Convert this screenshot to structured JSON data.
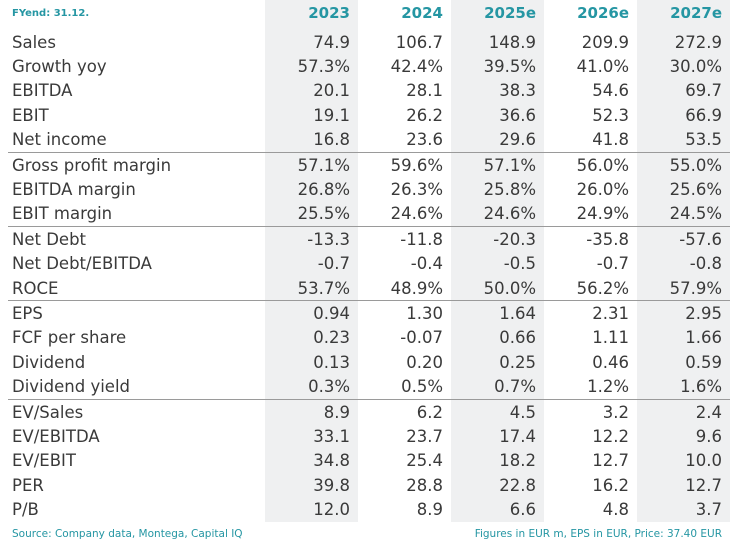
{
  "header": {
    "label": "FYend: 31.12.",
    "columns": [
      "2023",
      "2024",
      "2025e",
      "2026e",
      "2027e"
    ]
  },
  "sections": [
    [
      [
        "Sales",
        "74.9",
        "106.7",
        "148.9",
        "209.9",
        "272.9"
      ],
      [
        "Growth yoy",
        "57.3%",
        "42.4%",
        "39.5%",
        "41.0%",
        "30.0%"
      ],
      [
        "EBITDA",
        "20.1",
        "28.1",
        "38.3",
        "54.6",
        "69.7"
      ],
      [
        "EBIT",
        "19.1",
        "26.2",
        "36.6",
        "52.3",
        "66.9"
      ],
      [
        "Net income",
        "16.8",
        "23.6",
        "29.6",
        "41.8",
        "53.5"
      ]
    ],
    [
      [
        "Gross profit margin",
        "57.1%",
        "59.6%",
        "57.1%",
        "56.0%",
        "55.0%"
      ],
      [
        "EBITDA margin",
        "26.8%",
        "26.3%",
        "25.8%",
        "26.0%",
        "25.6%"
      ],
      [
        "EBIT margin",
        "25.5%",
        "24.6%",
        "24.6%",
        "24.9%",
        "24.5%"
      ]
    ],
    [
      [
        "Net Debt",
        "-13.3",
        "-11.8",
        "-20.3",
        "-35.8",
        "-57.6"
      ],
      [
        "Net Debt/EBITDA",
        "-0.7",
        "-0.4",
        "-0.5",
        "-0.7",
        "-0.8"
      ],
      [
        "ROCE",
        "53.7%",
        "48.9%",
        "50.0%",
        "56.2%",
        "57.9%"
      ]
    ],
    [
      [
        "EPS",
        "0.94",
        "1.30",
        "1.64",
        "2.31",
        "2.95"
      ],
      [
        "FCF per share",
        "0.23",
        "-0.07",
        "0.66",
        "1.11",
        "1.66"
      ],
      [
        "Dividend",
        "0.13",
        "0.20",
        "0.25",
        "0.46",
        "0.59"
      ],
      [
        "Dividend yield",
        "0.3%",
        "0.5%",
        "0.7%",
        "1.2%",
        "1.6%"
      ]
    ],
    [
      [
        "EV/Sales",
        "8.9",
        "6.2",
        "4.5",
        "3.2",
        "2.4"
      ],
      [
        "EV/EBITDA",
        "33.1",
        "23.7",
        "17.4",
        "12.2",
        "9.6"
      ],
      [
        "EV/EBIT",
        "34.8",
        "25.4",
        "18.2",
        "12.7",
        "10.0"
      ],
      [
        "PER",
        "39.8",
        "28.8",
        "22.8",
        "16.2",
        "12.7"
      ],
      [
        "P/B",
        "12.0",
        "8.9",
        "6.6",
        "4.8",
        "3.7"
      ]
    ]
  ],
  "footer": {
    "source": "Source: Company data, Montega, Capital IQ",
    "note": "Figures in EUR m, EPS in EUR, Price: 37.40 EUR"
  }
}
